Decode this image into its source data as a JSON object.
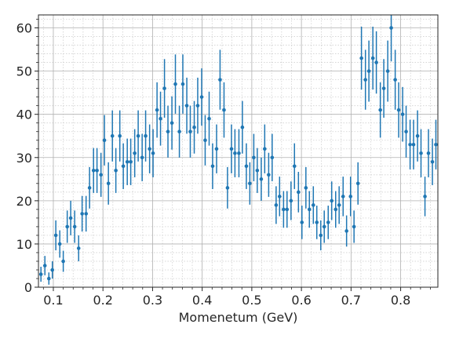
{
  "chart_data": {
    "type": "scatter",
    "title": "",
    "xlabel": "Momenetum (GeV)",
    "ylabel": "",
    "xlim": [
      0.07,
      0.875
    ],
    "ylim": [
      0,
      63
    ],
    "xticks": [
      0.1,
      0.2,
      0.3,
      0.4,
      0.5,
      0.6,
      0.7,
      0.8
    ],
    "xtick_labels": [
      "0.1",
      "0.2",
      "0.3",
      "0.4",
      "0.5",
      "0.6",
      "0.7",
      "0.8"
    ],
    "yticks": [
      0,
      10,
      20,
      30,
      40,
      50,
      60
    ],
    "ytick_labels": [
      "0",
      "10",
      "20",
      "30",
      "40",
      "50",
      "60"
    ],
    "grid": "major and minor",
    "marker_color": "#1f77b4",
    "error_bars": "sqrt(y)",
    "points": [
      {
        "x": 0.075,
        "y": 3
      },
      {
        "x": 0.083,
        "y": 5
      },
      {
        "x": 0.091,
        "y": 2
      },
      {
        "x": 0.098,
        "y": 4
      },
      {
        "x": 0.105,
        "y": 12
      },
      {
        "x": 0.113,
        "y": 10
      },
      {
        "x": 0.12,
        "y": 6
      },
      {
        "x": 0.128,
        "y": 14
      },
      {
        "x": 0.135,
        "y": 16
      },
      {
        "x": 0.143,
        "y": 14
      },
      {
        "x": 0.151,
        "y": 9
      },
      {
        "x": 0.158,
        "y": 17
      },
      {
        "x": 0.166,
        "y": 17
      },
      {
        "x": 0.173,
        "y": 23
      },
      {
        "x": 0.181,
        "y": 27
      },
      {
        "x": 0.188,
        "y": 27
      },
      {
        "x": 0.196,
        "y": 26
      },
      {
        "x": 0.203,
        "y": 34
      },
      {
        "x": 0.211,
        "y": 24
      },
      {
        "x": 0.219,
        "y": 35
      },
      {
        "x": 0.226,
        "y": 27
      },
      {
        "x": 0.234,
        "y": 35
      },
      {
        "x": 0.241,
        "y": 28
      },
      {
        "x": 0.249,
        "y": 29
      },
      {
        "x": 0.256,
        "y": 29
      },
      {
        "x": 0.264,
        "y": 31
      },
      {
        "x": 0.271,
        "y": 35
      },
      {
        "x": 0.279,
        "y": 30
      },
      {
        "x": 0.286,
        "y": 35
      },
      {
        "x": 0.294,
        "y": 32
      },
      {
        "x": 0.301,
        "y": 31
      },
      {
        "x": 0.309,
        "y": 41
      },
      {
        "x": 0.316,
        "y": 39
      },
      {
        "x": 0.324,
        "y": 46
      },
      {
        "x": 0.331,
        "y": 36
      },
      {
        "x": 0.339,
        "y": 38
      },
      {
        "x": 0.346,
        "y": 47
      },
      {
        "x": 0.354,
        "y": 36
      },
      {
        "x": 0.361,
        "y": 47
      },
      {
        "x": 0.369,
        "y": 42
      },
      {
        "x": 0.376,
        "y": 36
      },
      {
        "x": 0.384,
        "y": 37
      },
      {
        "x": 0.391,
        "y": 42
      },
      {
        "x": 0.399,
        "y": 44
      },
      {
        "x": 0.406,
        "y": 34
      },
      {
        "x": 0.414,
        "y": 39
      },
      {
        "x": 0.421,
        "y": 28
      },
      {
        "x": 0.429,
        "y": 32
      },
      {
        "x": 0.436,
        "y": 48
      },
      {
        "x": 0.444,
        "y": 41
      },
      {
        "x": 0.451,
        "y": 23
      },
      {
        "x": 0.459,
        "y": 32
      },
      {
        "x": 0.466,
        "y": 31
      },
      {
        "x": 0.474,
        "y": 31
      },
      {
        "x": 0.481,
        "y": 37
      },
      {
        "x": 0.489,
        "y": 28
      },
      {
        "x": 0.496,
        "y": 24
      },
      {
        "x": 0.504,
        "y": 30
      },
      {
        "x": 0.511,
        "y": 27
      },
      {
        "x": 0.519,
        "y": 25
      },
      {
        "x": 0.526,
        "y": 32
      },
      {
        "x": 0.534,
        "y": 26
      },
      {
        "x": 0.541,
        "y": 30
      },
      {
        "x": 0.549,
        "y": 19
      },
      {
        "x": 0.556,
        "y": 21
      },
      {
        "x": 0.564,
        "y": 18
      },
      {
        "x": 0.571,
        "y": 18
      },
      {
        "x": 0.579,
        "y": 20
      },
      {
        "x": 0.586,
        "y": 28
      },
      {
        "x": 0.594,
        "y": 22
      },
      {
        "x": 0.601,
        "y": 15
      },
      {
        "x": 0.609,
        "y": 23
      },
      {
        "x": 0.616,
        "y": 18
      },
      {
        "x": 0.624,
        "y": 19
      },
      {
        "x": 0.631,
        "y": 15
      },
      {
        "x": 0.639,
        "y": 12
      },
      {
        "x": 0.646,
        "y": 14
      },
      {
        "x": 0.654,
        "y": 15
      },
      {
        "x": 0.661,
        "y": 20
      },
      {
        "x": 0.669,
        "y": 18
      },
      {
        "x": 0.676,
        "y": 19
      },
      {
        "x": 0.684,
        "y": 21
      },
      {
        "x": 0.691,
        "y": 13
      },
      {
        "x": 0.699,
        "y": 21
      },
      {
        "x": 0.706,
        "y": 14
      },
      {
        "x": 0.714,
        "y": 24
      },
      {
        "x": 0.721,
        "y": 53
      },
      {
        "x": 0.729,
        "y": 48
      },
      {
        "x": 0.736,
        "y": 50
      },
      {
        "x": 0.744,
        "y": 53
      },
      {
        "x": 0.751,
        "y": 52
      },
      {
        "x": 0.759,
        "y": 41
      },
      {
        "x": 0.766,
        "y": 46
      },
      {
        "x": 0.774,
        "y": 50
      },
      {
        "x": 0.781,
        "y": 60
      },
      {
        "x": 0.789,
        "y": 48
      },
      {
        "x": 0.796,
        "y": 41
      },
      {
        "x": 0.804,
        "y": 40
      },
      {
        "x": 0.811,
        "y": 36
      },
      {
        "x": 0.819,
        "y": 33
      },
      {
        "x": 0.826,
        "y": 33
      },
      {
        "x": 0.834,
        "y": 35
      },
      {
        "x": 0.841,
        "y": 31
      },
      {
        "x": 0.849,
        "y": 21
      },
      {
        "x": 0.856,
        "y": 31
      },
      {
        "x": 0.864,
        "y": 29
      },
      {
        "x": 0.871,
        "y": 33
      }
    ]
  }
}
